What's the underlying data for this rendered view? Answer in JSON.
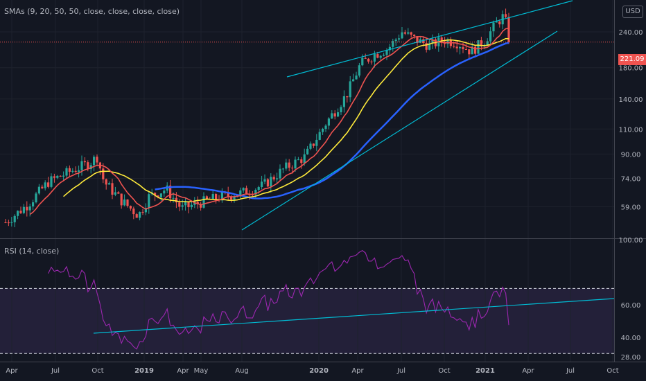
{
  "chart_data": {
    "type": "candlestick",
    "symbol_currency": "USD",
    "last_price": "221.09",
    "panels": [
      {
        "name": "price",
        "legend": "SMAs (9, 20, 50, 50, close, close, close, close)",
        "price_axis_ticks": [
          "240.00",
          "180.00",
          "140.00",
          "110.00",
          "90.00",
          "74.00",
          "59.00"
        ],
        "price_axis_values": [
          240,
          180,
          140,
          110,
          90,
          74,
          59
        ],
        "y_range": [
          46,
          310
        ],
        "scale": "log"
      },
      {
        "name": "rsi",
        "legend": "RSI (14, close)",
        "axis_ticks": [
          "100.00",
          "60.00",
          "40.00",
          "28.00"
        ],
        "axis_values": [
          100,
          60,
          40,
          28
        ],
        "y_range": [
          25,
          100
        ],
        "bands": [
          70,
          30
        ]
      }
    ],
    "x_ticks": [
      "Apr",
      "Jul",
      "Oct",
      "2019",
      "Apr",
      "May",
      "Aug",
      "2020",
      "Apr",
      "Jul",
      "Oct",
      "2021",
      "Apr",
      "Jul",
      "Oct"
    ],
    "colors": {
      "up": "#26a69a",
      "down": "#ef5350",
      "sma9": "#ef5350",
      "sma20": "#ffeb3b",
      "sma50": "#2962ff",
      "trendline": "#00bcd4",
      "rsi_line": "#9c27b0",
      "rsi_band": "#7e57c2",
      "price_line": "#ef5350"
    }
  }
}
